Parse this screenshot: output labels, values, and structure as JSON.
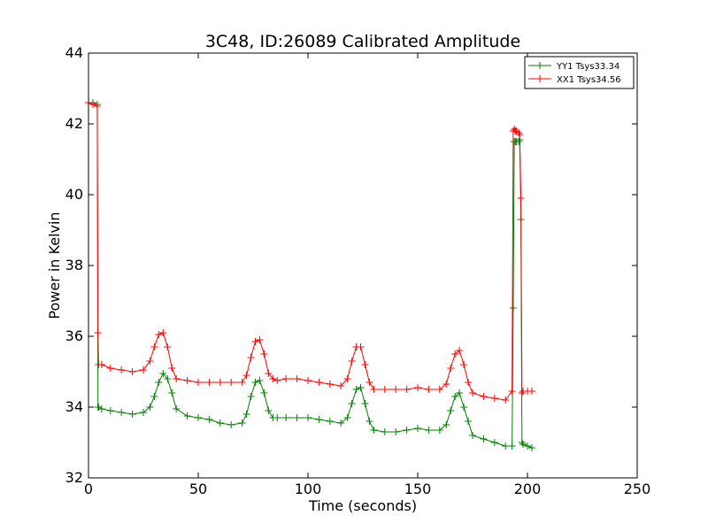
{
  "chart_data": {
    "type": "line",
    "title": "3C48, ID:26089 Calibrated Amplitude",
    "xlabel": "Time (seconds)",
    "ylabel": "Power in Kelvin",
    "xlim": [
      0,
      250
    ],
    "ylim": [
      32,
      44
    ],
    "xticks": [
      0,
      50,
      100,
      150,
      200,
      250
    ],
    "yticks": [
      32,
      34,
      36,
      38,
      40,
      42,
      44
    ],
    "grid": false,
    "legend_position": "top-right",
    "marker": "plus",
    "series": [
      {
        "name": "YY1 Tsys33.34",
        "color": "#008000",
        "x": [
          0,
          2,
          4,
          4.3,
          4.6,
          6,
          10,
          15,
          20,
          25,
          28,
          30,
          32,
          34,
          36,
          38,
          40,
          45,
          50,
          55,
          60,
          65,
          70,
          72,
          74,
          76,
          78,
          80,
          82,
          84,
          86,
          90,
          95,
          100,
          105,
          110,
          115,
          118,
          120,
          122,
          124,
          126,
          128,
          130,
          135,
          140,
          145,
          150,
          155,
          160,
          163,
          165,
          167,
          169,
          171,
          173,
          175,
          180,
          185,
          190,
          193,
          193.5,
          194,
          194.5,
          195,
          196,
          196.5,
          197,
          197.5,
          198,
          200,
          202
        ],
        "y": [
          42.6,
          42.6,
          42.55,
          34.0,
          34.0,
          33.95,
          33.9,
          33.85,
          33.8,
          33.85,
          34.0,
          34.3,
          34.7,
          34.95,
          34.8,
          34.4,
          33.95,
          33.75,
          33.7,
          33.65,
          33.55,
          33.5,
          33.55,
          33.8,
          34.3,
          34.7,
          34.75,
          34.4,
          33.9,
          33.7,
          33.7,
          33.7,
          33.7,
          33.7,
          33.65,
          33.6,
          33.55,
          33.7,
          34.1,
          34.5,
          34.55,
          34.1,
          33.6,
          33.35,
          33.3,
          33.3,
          33.35,
          33.4,
          33.35,
          33.35,
          33.5,
          33.9,
          34.3,
          34.4,
          34.0,
          33.6,
          33.2,
          33.1,
          33.0,
          32.9,
          32.9,
          36.8,
          41.5,
          41.5,
          41.5,
          41.5,
          41.55,
          39.3,
          33.0,
          32.95,
          32.9,
          32.85
        ]
      },
      {
        "name": "XX1 Tsys34.56",
        "color": "#ff0000",
        "x": [
          0,
          2,
          4,
          4.3,
          4.6,
          6,
          10,
          15,
          20,
          25,
          28,
          30,
          32,
          34,
          36,
          38,
          40,
          45,
          50,
          55,
          60,
          65,
          70,
          72,
          74,
          76,
          78,
          80,
          82,
          84,
          86,
          90,
          95,
          100,
          105,
          110,
          115,
          118,
          120,
          122,
          124,
          126,
          128,
          130,
          135,
          140,
          145,
          150,
          155,
          160,
          163,
          165,
          167,
          169,
          171,
          173,
          175,
          180,
          185,
          190,
          193,
          193.5,
          194,
          194.5,
          195,
          196,
          196.5,
          197,
          197.5,
          198,
          200,
          202
        ],
        "y": [
          42.6,
          42.55,
          42.5,
          36.1,
          35.2,
          35.2,
          35.1,
          35.05,
          35.0,
          35.05,
          35.3,
          35.7,
          36.05,
          36.1,
          35.7,
          35.1,
          34.8,
          34.75,
          34.7,
          34.7,
          34.7,
          34.7,
          34.7,
          34.9,
          35.4,
          35.85,
          35.9,
          35.5,
          34.95,
          34.8,
          34.75,
          34.8,
          34.8,
          34.75,
          34.7,
          34.65,
          34.6,
          34.8,
          35.3,
          35.7,
          35.7,
          35.2,
          34.7,
          34.5,
          34.5,
          34.5,
          34.5,
          34.55,
          34.5,
          34.5,
          34.65,
          35.1,
          35.5,
          35.6,
          35.2,
          34.7,
          34.4,
          34.3,
          34.25,
          34.2,
          34.45,
          41.8,
          41.85,
          41.8,
          41.8,
          41.75,
          41.7,
          39.9,
          34.4,
          34.45,
          34.45,
          34.45
        ]
      }
    ]
  }
}
